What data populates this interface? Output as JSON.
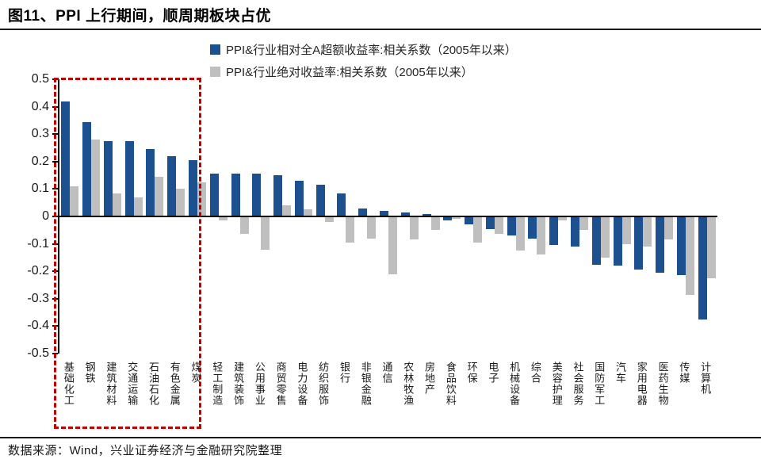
{
  "header": {
    "title": "图11、PPI 上行期间，顺周期板块占优"
  },
  "legend": [
    {
      "label": "PPI&行业相对全A超额收益率:相关系数（2005年以来）",
      "color": "#1D508F"
    },
    {
      "label": "PPI&行业绝对收益率:相关系数（2005年以来）",
      "color": "#BFBFBF"
    }
  ],
  "footer": {
    "source": "数据来源：Wind，兴业证券经济与金融研究院整理"
  },
  "chart_data": {
    "type": "bar",
    "title": "图11、PPI 上行期间，顺周期板块占优",
    "categories": [
      "基础化工",
      "钢铁",
      "建筑材料",
      "交通运输",
      "石油石化",
      "有色金属",
      "煤炭",
      "轻工制造",
      "建筑装饰",
      "公用事业",
      "商贸零售",
      "电力设备",
      "纺织服饰",
      "银行",
      "非银金融",
      "通信",
      "农林牧渔",
      "房地产",
      "食品饮料",
      "环保",
      "电子",
      "机械设备",
      "综合",
      "美容护理",
      "社会服务",
      "国防军工",
      "汽车",
      "家用电器",
      "医药生物",
      "传媒",
      "计算机"
    ],
    "series": [
      {
        "name": "PPI&行业相对全A超额收益率:相关系数（2005年以来）",
        "color": "#1D508F",
        "values": [
          0.42,
          0.345,
          0.275,
          0.275,
          0.245,
          0.22,
          0.205,
          0.155,
          0.155,
          0.155,
          0.15,
          0.13,
          0.115,
          0.085,
          0.03,
          0.02,
          0.015,
          0.01,
          -0.015,
          -0.03,
          -0.045,
          -0.07,
          -0.08,
          -0.105,
          -0.11,
          -0.175,
          -0.18,
          -0.195,
          -0.205,
          -0.215,
          -0.375
        ]
      },
      {
        "name": "PPI&行业绝对收益率:相关系数（2005年以来）",
        "color": "#BFBFBF",
        "values": [
          0.11,
          0.28,
          0.085,
          0.07,
          0.145,
          0.1,
          0.125,
          -0.015,
          -0.065,
          -0.12,
          0.04,
          0.025,
          -0.02,
          -0.095,
          -0.08,
          -0.21,
          -0.085,
          -0.05,
          -0.01,
          -0.095,
          -0.065,
          -0.125,
          -0.14,
          -0.015,
          -0.05,
          -0.15,
          -0.1,
          -0.11,
          -0.085,
          -0.285,
          -0.225
        ]
      }
    ],
    "xlabel": "",
    "ylabel": "",
    "ylim": [
      -0.5,
      0.5
    ],
    "yticks": [
      0.5,
      0.4,
      0.3,
      0.2,
      0.1,
      0,
      -0.1,
      -0.2,
      -0.3,
      -0.4,
      -0.5
    ],
    "grid": false,
    "legend_position": "top-center",
    "annotation": {
      "type": "dashed-box",
      "color": "#C00000",
      "categories_enclosed": [
        "基础化工",
        "钢铁",
        "建筑材料",
        "交通运输",
        "石油石化",
        "有色金属",
        "煤炭"
      ]
    }
  }
}
